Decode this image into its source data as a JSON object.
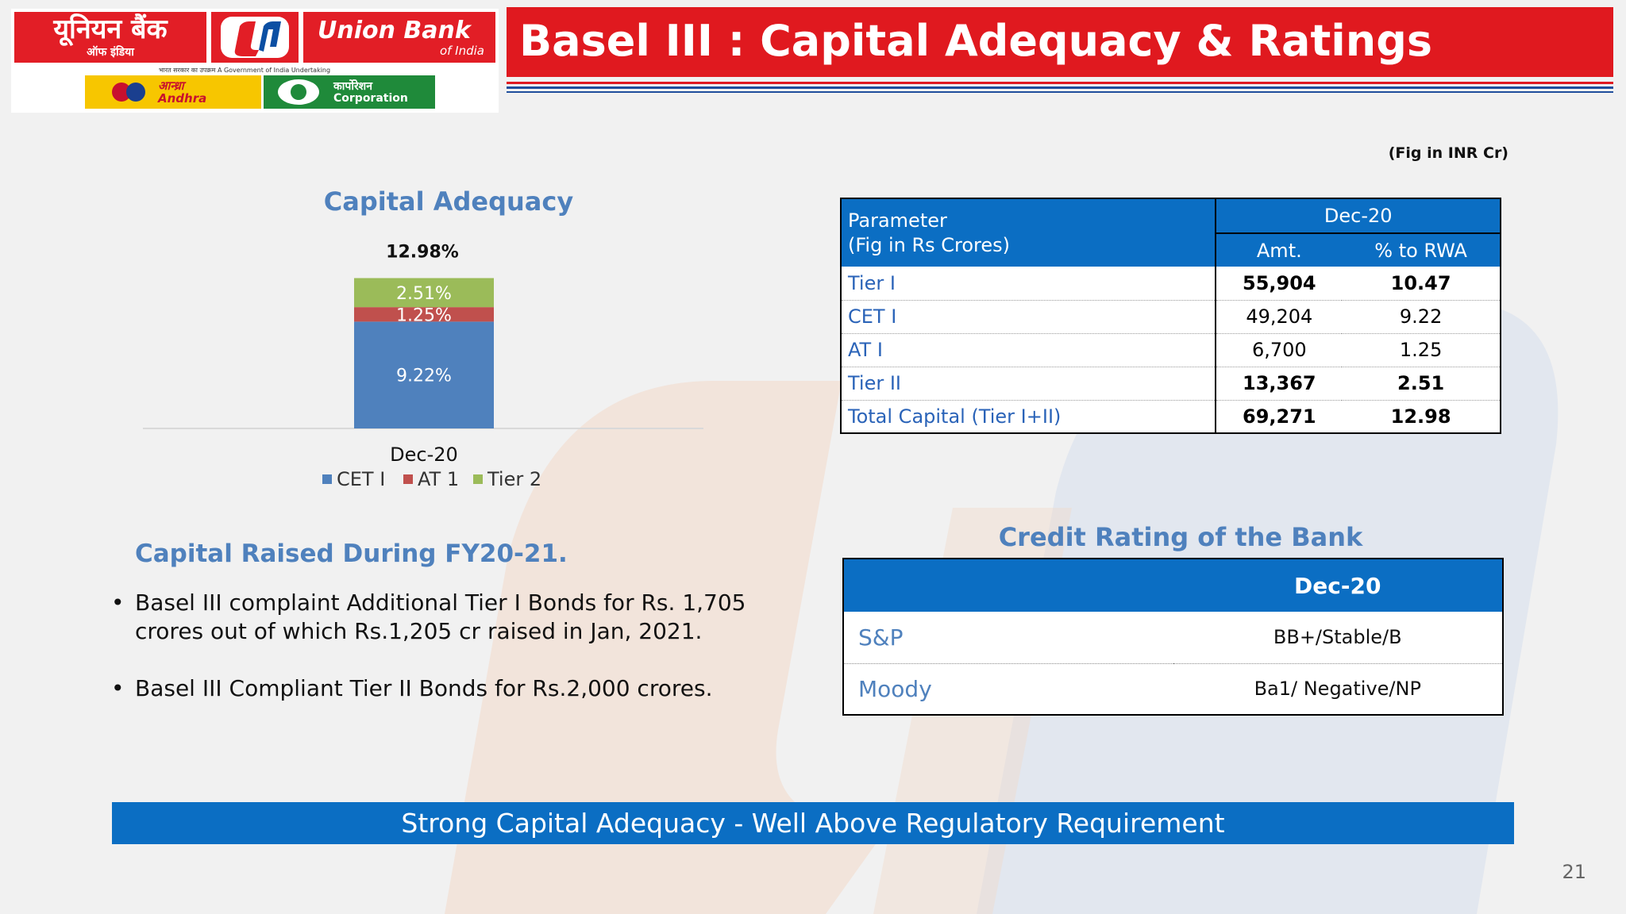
{
  "logo": {
    "hindi_name": "यूनियन बैंक",
    "hindi_sub": "ऑफ इंडिया",
    "name": "Union Bank",
    "name_sub": "of India",
    "gov_note": "भारत सरकार का उपक्रम   A Government of India Undertaking",
    "andhra_line1": "आन्ध्रा",
    "andhra_line2": "Andhra",
    "corp_line1": "कार्पोरेशन",
    "corp_line2": "Corporation",
    "brand_color": "#e21e26"
  },
  "title": "Basel III : Capital Adequacy & Ratings",
  "fig_note": "(Fig in INR Cr)",
  "chart_data": {
    "type": "bar",
    "stacked": true,
    "title": "Capital Adequacy",
    "total_label": "12.98%",
    "categories": [
      "Dec-20"
    ],
    "series": [
      {
        "name": "CET I",
        "values": [
          9.22
        ],
        "label": "9.22%",
        "color": "#4f81bd"
      },
      {
        "name": "AT 1",
        "values": [
          1.25
        ],
        "label": "1.25%",
        "color": "#c0504d"
      },
      {
        "name": "Tier 2",
        "values": [
          2.51
        ],
        "label": "2.51%",
        "color": "#9bbb59"
      }
    ],
    "legend_position": "bottom",
    "grid": false
  },
  "raised": {
    "title": "Capital  Raised During FY20-21.",
    "items": [
      "Basel III complaint  Additional Tier I Bonds for Rs. 1,705 crores out of which Rs.1,205 cr raised in Jan, 2021.",
      "Basel III Compliant Tier II Bonds for Rs.2,000 crores."
    ]
  },
  "capital_table": {
    "param_header_line1": "Parameter",
    "param_header_line2": "(Fig in Rs Crores)",
    "period": "Dec-20",
    "col_amt": "Amt.",
    "col_rwa": "% to RWA",
    "rows": [
      {
        "parameter": "Tier I",
        "amt": "55,904",
        "rwa": "10.47",
        "bold": true
      },
      {
        "parameter": "CET I",
        "amt": "49,204",
        "rwa": "9.22",
        "bold": false
      },
      {
        "parameter": "AT I",
        "amt": "6,700",
        "rwa": "1.25",
        "bold": false
      },
      {
        "parameter": "Tier II",
        "amt": "13,367",
        "rwa": "2.51",
        "bold": true
      },
      {
        "parameter": "Total Capital (Tier I+II)",
        "amt": "69,271",
        "rwa": "12.98",
        "bold": true
      }
    ]
  },
  "rating": {
    "title": "Credit Rating of the Bank",
    "period": "Dec-20",
    "rows": [
      {
        "agency": "S&P",
        "value": "BB+/Stable/B"
      },
      {
        "agency": "Moody",
        "value": "Ba1/ Negative/NP"
      }
    ]
  },
  "banner": "Strong Capital Adequacy - Well Above Regulatory Requirement",
  "page_number": "21"
}
